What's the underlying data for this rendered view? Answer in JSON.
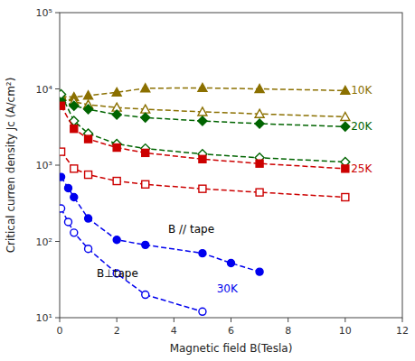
{
  "chart_data": {
    "type": "line",
    "xlabel": "Magnetic field B(Tesla)",
    "ylabel": "Critical curren density Jc (A/cm²)",
    "log": "y",
    "grid": false,
    "xlim": [
      0,
      12
    ],
    "ylim": [
      10,
      100000
    ],
    "xticks": [
      0,
      2,
      4,
      6,
      8,
      10,
      12
    ],
    "yticks": [
      {
        "value": 10,
        "label": "10¹"
      },
      {
        "value": 100,
        "label": "10²"
      },
      {
        "value": 1000,
        "label": "10³"
      },
      {
        "value": 10000,
        "label": "10⁴"
      },
      {
        "value": 100000,
        "label": "10⁵"
      }
    ],
    "series": [
      {
        "color": "#8B7000",
        "marker": "triangle",
        "line_style": "dashed",
        "x": [
          0.05,
          0.5,
          1,
          2,
          3,
          5,
          7,
          10
        ],
        "values": [
          8000,
          7800,
          8200,
          9000,
          10200,
          10300,
          10000,
          9500
        ]
      },
      {
        "color": "#8B7000",
        "marker": "triangle-open",
        "line_style": "dashed",
        "x": [
          0.05,
          0.5,
          1,
          2,
          3,
          5,
          7,
          10
        ],
        "values": [
          8000,
          6800,
          6200,
          5700,
          5400,
          5000,
          4700,
          4300
        ]
      },
      {
        "color": "#006400",
        "marker": "diamond",
        "line_style": "dashed",
        "x": [
          0.05,
          0.5,
          1,
          2,
          3,
          5,
          7,
          10
        ],
        "values": [
          7000,
          6000,
          5400,
          4600,
          4200,
          3800,
          3500,
          3200
        ]
      },
      {
        "color": "#006400",
        "marker": "diamond-open",
        "line_style": "dashed",
        "x": [
          0.05,
          0.5,
          1,
          2,
          3,
          5,
          7,
          10
        ],
        "values": [
          8500,
          3800,
          2600,
          1900,
          1650,
          1400,
          1250,
          1100
        ]
      },
      {
        "color": "#CC0000",
        "marker": "square",
        "line_style": "dashed",
        "x": [
          0.05,
          0.5,
          1,
          2,
          3,
          5,
          7,
          10
        ],
        "values": [
          6000,
          3000,
          2200,
          1700,
          1450,
          1200,
          1050,
          900
        ]
      },
      {
        "color": "#CC0000",
        "marker": "square-open",
        "line_style": "dashed",
        "x": [
          0.05,
          0.5,
          1,
          2,
          3,
          5,
          7,
          10
        ],
        "values": [
          1500,
          900,
          750,
          620,
          560,
          490,
          440,
          380
        ]
      },
      {
        "color": "#0000EE",
        "marker": "circle",
        "line_style": "dashed",
        "x": [
          0.05,
          0.3,
          0.5,
          1,
          2,
          3,
          5,
          6,
          7
        ],
        "values": [
          700,
          500,
          380,
          200,
          105,
          90,
          70,
          52,
          40
        ]
      },
      {
        "color": "#0000EE",
        "marker": "circle-open",
        "line_style": "dashed",
        "x": [
          0.05,
          0.3,
          0.5,
          1,
          2,
          3,
          5
        ],
        "values": [
          270,
          180,
          130,
          80,
          38,
          20,
          12
        ]
      }
    ],
    "annotations": [
      {
        "text": "10K",
        "x": 10.2,
        "y": 9500,
        "color": "#8B7000"
      },
      {
        "text": "20K",
        "x": 10.2,
        "y": 3200,
        "color": "#006400"
      },
      {
        "text": "25K",
        "x": 10.2,
        "y": 900,
        "color": "#CC0000"
      },
      {
        "text": "30K",
        "x": 5.5,
        "y": 24,
        "color": "#0000EE"
      },
      {
        "text": "B // tape",
        "x": 3.8,
        "y": 145,
        "color": "#000000"
      },
      {
        "text": "B⊥tape",
        "x": 1.3,
        "y": 38,
        "color": "#000000"
      }
    ]
  }
}
